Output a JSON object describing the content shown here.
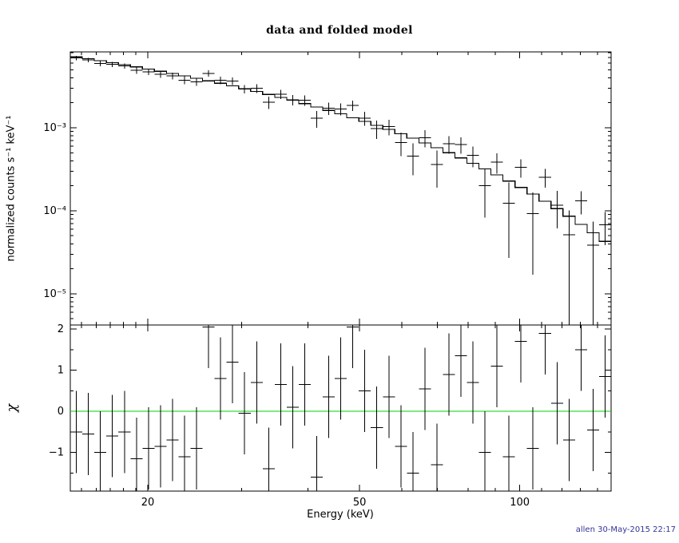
{
  "title": "data and folded model",
  "footer": "allen 30-May-2015 22:17",
  "colors": {
    "foreground": "#000000",
    "background": "#ffffff",
    "model": "#000000",
    "data": "#000000",
    "zero_line": "#00d400",
    "footer": "#333399"
  },
  "chart_data": {
    "type": "line",
    "title": "data and folded model",
    "xlabel": "Energy (keV)",
    "ylabel_top": "normalized counts s⁻¹ keV⁻¹",
    "ylabel_bottom": "χ",
    "x_scale": "log",
    "y_scale_top": "log",
    "y_scale_bottom": "linear",
    "grid": false,
    "legend": false,
    "xlim": [
      14.3,
      148.49
    ],
    "ylim_top": [
      4.2e-06,
      0.0082
    ],
    "ylim_bottom": [
      -1.94,
      2.1
    ],
    "x_ticks": [
      {
        "v": 20,
        "label": "20"
      },
      {
        "v": 50,
        "label": "50"
      },
      {
        "v": 100,
        "label": "100"
      }
    ],
    "x_minor_ticks": [
      15,
      16,
      17,
      18,
      19,
      30,
      40,
      60,
      70,
      80,
      90,
      110,
      120,
      130,
      140
    ],
    "y_ticks_top": [
      {
        "v": 0.001,
        "label": "10⁻³"
      },
      {
        "v": 0.0001,
        "label": "10⁻⁴"
      },
      {
        "v": 1e-05,
        "label": "10⁻⁵"
      }
    ],
    "y_ticks_bottom": [
      {
        "v": 2,
        "label": "2"
      },
      {
        "v": 1,
        "label": "1"
      },
      {
        "v": 0,
        "label": "0"
      },
      {
        "v": -1,
        "label": "−1"
      }
    ],
    "y_minor_ticks_bottom": [
      -1.5,
      -0.5,
      0.5,
      1.5
    ],
    "bin_edges_keV": [
      14.3,
      15.06,
      15.87,
      16.72,
      17.61,
      18.55,
      19.54,
      20.58,
      21.68,
      22.84,
      24.06,
      25.34,
      26.7,
      28.12,
      29.62,
      31.21,
      32.87,
      34.63,
      36.48,
      38.42,
      40.47,
      42.64,
      44.91,
      47.31,
      49.84,
      52.5,
      55.3,
      58.25,
      61.36,
      64.63,
      68.08,
      71.71,
      75.54,
      79.57,
      83.81,
      88.28,
      93.0,
      97.96,
      103.18,
      108.69,
      114.49,
      120.6,
      127.04,
      133.82,
      140.97,
      148.49
    ],
    "series": {
      "data": {
        "name": "data",
        "rate": [
          0.00694,
          0.00656,
          0.00597,
          0.00582,
          0.00554,
          0.00491,
          0.00473,
          0.00442,
          0.00422,
          0.00375,
          0.00359,
          0.00451,
          0.00373,
          0.00365,
          0.00293,
          0.00298,
          0.00203,
          0.00253,
          0.00217,
          0.00215,
          0.0013,
          0.00172,
          0.00169,
          0.00186,
          0.00131,
          0.000976,
          0.00103,
          0.000667,
          0.000456,
          0.000759,
          0.000359,
          0.000641,
          0.000627,
          0.000464,
          0.000201,
          0.000386,
          0.000123,
          0.000334,
          9.2e-05,
          0.000254,
          0.000117,
          5.16e-05,
          0.000131,
          3.87e-05,
          6.74e-05
        ],
        "rate_err": [
          0.00043,
          0.00041,
          0.00045,
          0.00042,
          0.0004,
          0.00043,
          0.00041,
          0.00043,
          0.00041,
          0.00042,
          0.00039,
          0.0004,
          0.00038,
          0.00038,
          0.00035,
          0.00035,
          0.00035,
          0.00032,
          0.00032,
          0.00031,
          0.0003,
          0.00029,
          0.00028,
          0.00026,
          0.00025,
          0.00024,
          0.00022,
          0.00021,
          0.00019,
          0.00018,
          0.00017,
          0.000155,
          0.000143,
          0.000131,
          0.000118,
          0.000105,
          9.6e-05,
          8.4e-05,
          7.5e-05,
          6.5e-05,
          5.6e-05,
          4.9e-05,
          4.1e-05,
          3.5e-05,
          2.9e-05
        ]
      },
      "model": {
        "name": "folded model",
        "values": [
          0.00715,
          0.00678,
          0.00642,
          0.00607,
          0.00574,
          0.00541,
          0.0051,
          0.00479,
          0.0045,
          0.00421,
          0.00394,
          0.00368,
          0.00343,
          0.00319,
          0.00295,
          0.00273,
          0.00252,
          0.00232,
          0.00214,
          0.00195,
          0.00178,
          0.00162,
          0.00147,
          0.00132,
          0.00119,
          0.00107,
          0.000954,
          0.000847,
          0.000748,
          0.000658,
          0.000576,
          0.000501,
          0.000434,
          0.000373,
          0.000319,
          0.00027,
          0.000228,
          0.000191,
          0.000159,
          0.00013,
          0.000106,
          8.58e-05,
          6.87e-05,
          5.44e-05,
          4.27e-05
        ]
      },
      "residuals": {
        "name": "chi residuals",
        "chi": [
          -0.5,
          -0.55,
          -1.0,
          -0.6,
          -0.5,
          -1.15,
          -0.9,
          -0.85,
          -0.7,
          -1.1,
          -0.9,
          2.05,
          0.8,
          1.2,
          -0.05,
          0.7,
          -1.4,
          0.65,
          0.1,
          0.65,
          -1.6,
          0.35,
          0.8,
          2.05,
          0.5,
          -0.4,
          0.35,
          -0.85,
          -1.5,
          0.55,
          -1.3,
          0.9,
          1.35,
          0.7,
          -1.0,
          1.1,
          -1.1,
          1.7,
          -0.9,
          1.9,
          0.2,
          -0.7,
          1.5,
          -0.45,
          0.85
        ],
        "chi_err": 1.0
      }
    }
  }
}
